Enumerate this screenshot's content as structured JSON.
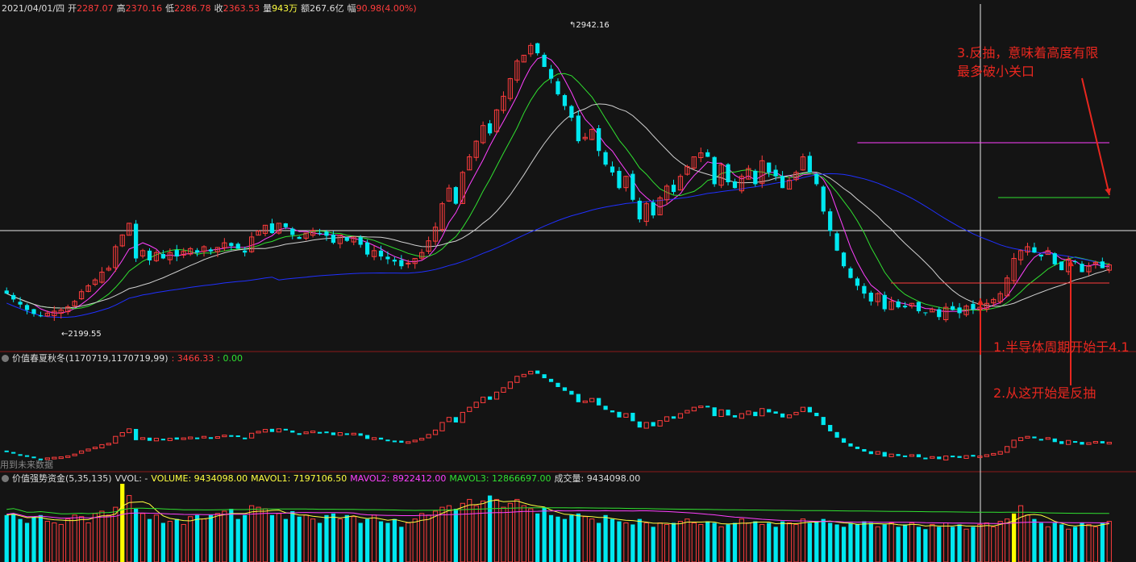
{
  "header": {
    "date": "2021/04/01/四",
    "open_label": "开",
    "open": "2287.07",
    "high_label": "高",
    "high": "2370.16",
    "low_label": "低",
    "low": "2286.78",
    "close_label": "收",
    "close": "2363.53",
    "vol_label": "量",
    "vol": "943万",
    "amount_label": "额",
    "amount": "267.6亿",
    "change_label": "幅",
    "change": "90.98(4.00%)"
  },
  "indicator1": {
    "name": "价值春夏秋冬",
    "params": "(1170719,1170719,99)",
    "v1": ": 3466.33",
    "v2": ": 0.00",
    "future_text": "用到未来数据"
  },
  "indicator2": {
    "name": "价值强势资金",
    "params": "(5,35,135)",
    "vvol": "VVOL: -",
    "volume": "VOLUME: 9434098.00",
    "mavol1": "MAVOL1: 7197106.50",
    "mavol2": "MAVOL2: 8922412.00",
    "mavol3": "MAVOL3: 12866697.00",
    "cjl": "成交量: 9434098.00"
  },
  "annotations": {
    "note1": "1.半导体周期开始于4.1",
    "note2": "2.从这开始是反抽",
    "note3_line1": "3.反抽，意味着高度有限",
    "note3_line2": "最多破小关口"
  },
  "price_labels": {
    "max": "2942.16",
    "min": "2199.55"
  },
  "colors": {
    "up": "#ff3c3c",
    "down": "#00e8f0",
    "ma5": "#ff40ff",
    "ma10": "#30e030",
    "ma20": "#d0d0d0",
    "ma60": "#2030ff",
    "vol_ma1": "#ffff40",
    "vol_ma2": "#ff40ff",
    "vol_ma3": "#30e030",
    "background": "#141414"
  },
  "chart_data": {
    "type": "candlestick",
    "closes": [
      2290,
      2275,
      2262,
      2248,
      2238,
      2232,
      2240,
      2245,
      2248,
      2256,
      2270,
      2295,
      2310,
      2325,
      2345,
      2355,
      2410,
      2440,
      2470,
      2380,
      2400,
      2375,
      2395,
      2380,
      2395,
      2385,
      2398,
      2405,
      2395,
      2410,
      2398,
      2408,
      2420,
      2412,
      2405,
      2395,
      2435,
      2450,
      2465,
      2445,
      2470,
      2460,
      2440,
      2430,
      2445,
      2452,
      2445,
      2438,
      2420,
      2440,
      2425,
      2435,
      2415,
      2390,
      2400,
      2385,
      2378,
      2372,
      2360,
      2368,
      2380,
      2395,
      2425,
      2460,
      2520,
      2560,
      2520,
      2600,
      2640,
      2680,
      2720,
      2700,
      2760,
      2795,
      2840,
      2885,
      2900,
      2925,
      2905,
      2870,
      2840,
      2800,
      2770,
      2740,
      2680,
      2690,
      2710,
      2655,
      2620,
      2600,
      2560,
      2590,
      2530,
      2480,
      2520,
      2490,
      2535,
      2565,
      2550,
      2590,
      2615,
      2640,
      2650,
      2640,
      2570,
      2620,
      2575,
      2560,
      2590,
      2610,
      2570,
      2630,
      2600,
      2590,
      2560,
      2580,
      2600,
      2640,
      2600,
      2570,
      2500,
      2450,
      2400,
      2360,
      2330,
      2310,
      2290,
      2270,
      2290,
      2250,
      2270,
      2255,
      2255,
      2265,
      2245,
      2240,
      2250,
      2230,
      2255,
      2248,
      2240,
      2258,
      2250,
      2255,
      2265,
      2275,
      2290,
      2330,
      2380,
      2400,
      2410,
      2395,
      2385,
      2400,
      2365,
      2350,
      2378,
      2372,
      2345,
      2360,
      2370,
      2355,
      2363.53
    ],
    "ohlc_note": "approximated from visual",
    "price_range": [
      2150,
      3000
    ],
    "max_label_value": 2942.16,
    "min_label_value": 2199.55,
    "volume_relative": [
      0.6,
      0.62,
      0.55,
      0.5,
      0.58,
      0.6,
      0.52,
      0.5,
      0.48,
      0.55,
      0.6,
      0.58,
      0.5,
      0.62,
      0.65,
      0.6,
      0.7,
      1.0,
      0.85,
      0.68,
      0.62,
      0.55,
      0.6,
      0.5,
      0.52,
      0.55,
      0.48,
      0.58,
      0.6,
      0.55,
      0.6,
      0.62,
      0.65,
      0.68,
      0.55,
      0.6,
      0.72,
      0.7,
      0.68,
      0.6,
      0.62,
      0.55,
      0.65,
      0.58,
      0.6,
      0.55,
      0.5,
      0.6,
      0.62,
      0.55,
      0.6,
      0.58,
      0.5,
      0.55,
      0.6,
      0.52,
      0.5,
      0.55,
      0.45,
      0.5,
      0.55,
      0.62,
      0.6,
      0.65,
      0.7,
      0.72,
      0.68,
      0.75,
      0.8,
      0.72,
      0.78,
      0.85,
      0.8,
      0.7,
      0.75,
      0.8,
      0.72,
      0.68,
      0.62,
      0.7,
      0.6,
      0.58,
      0.55,
      0.6,
      0.62,
      0.58,
      0.55,
      0.5,
      0.6,
      0.55,
      0.52,
      0.5,
      0.48,
      0.55,
      0.5,
      0.45,
      0.5,
      0.48,
      0.5,
      0.52,
      0.55,
      0.5,
      0.48,
      0.52,
      0.5,
      0.45,
      0.48,
      0.5,
      0.55,
      0.5,
      0.52,
      0.48,
      0.5,
      0.45,
      0.52,
      0.5,
      0.48,
      0.55,
      0.5,
      0.52,
      0.55,
      0.5,
      0.48,
      0.45,
      0.5,
      0.48,
      0.52,
      0.5,
      0.45,
      0.48,
      0.5,
      0.45,
      0.48,
      0.5,
      0.45,
      0.42,
      0.48,
      0.45,
      0.5,
      0.45,
      0.48,
      0.42,
      0.45,
      0.48,
      0.5,
      0.45,
      0.52,
      0.55,
      0.62,
      0.72,
      0.6,
      0.55,
      0.5,
      0.45,
      0.5,
      0.48,
      0.42,
      0.45,
      0.5,
      0.48,
      0.45,
      0.5,
      0.52,
      0.48,
      0.5
    ]
  }
}
